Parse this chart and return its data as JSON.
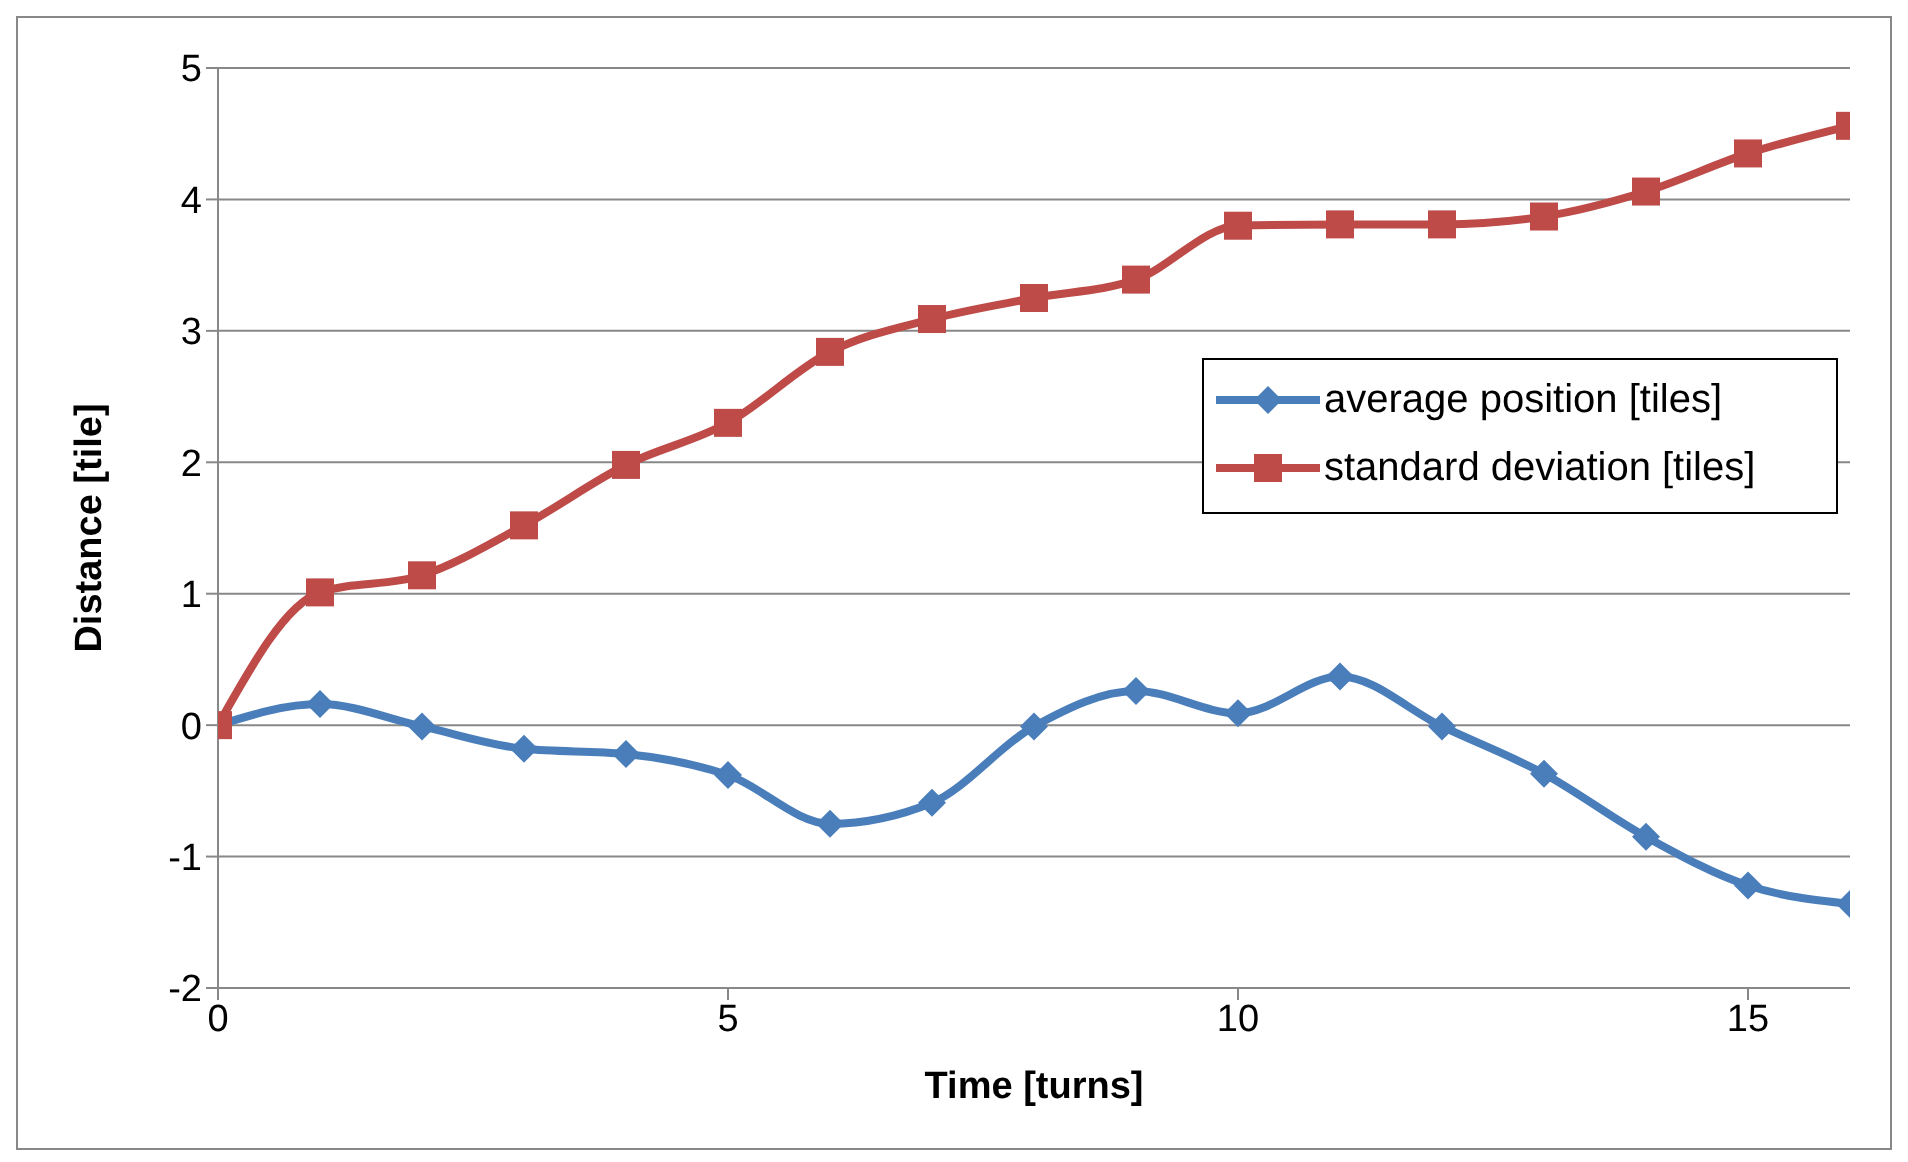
{
  "chart_data": {
    "type": "line",
    "xlabel": "Time [turns]",
    "ylabel": "Distance  [tile]",
    "x": [
      0,
      1,
      2,
      3,
      4,
      5,
      6,
      7,
      8,
      9,
      10,
      11,
      12,
      13,
      14,
      15,
      16
    ],
    "series": [
      {
        "name": "average position [tiles]",
        "color": "#4a7ebb",
        "marker": "diamond",
        "values": [
          0,
          0.16,
          -0.01,
          -0.18,
          -0.22,
          -0.38,
          -0.75,
          -0.59,
          -0.01,
          0.26,
          0.09,
          0.37,
          -0.01,
          -0.37,
          -0.85,
          -1.22,
          -1.36
        ]
      },
      {
        "name": "standard deviation [tiles]",
        "color": "#be4b48",
        "marker": "square",
        "values": [
          0,
          1.01,
          1.14,
          1.52,
          1.98,
          2.3,
          2.84,
          3.09,
          3.25,
          3.39,
          3.8,
          3.81,
          3.81,
          3.87,
          4.06,
          4.35,
          4.56
        ]
      }
    ],
    "xlim": [
      0,
      16
    ],
    "xticks": [
      0,
      5,
      10,
      15
    ],
    "ylim": [
      -2,
      5
    ],
    "yticks": [
      -2,
      -1,
      0,
      1,
      2,
      3,
      4,
      5
    ],
    "grid": "y",
    "legend": "right",
    "line_style": "solid"
  }
}
